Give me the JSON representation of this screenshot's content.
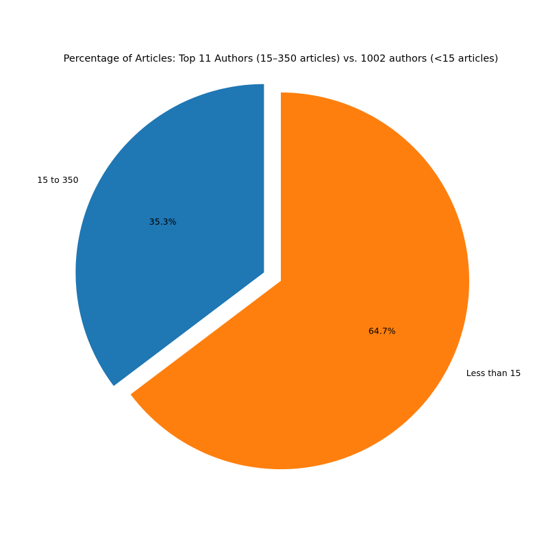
{
  "chart_data": {
    "type": "pie",
    "title": "Percentage of Articles: Top 11 Authors (15–350 articles) vs. 1002 authors (<15 articles)",
    "categories": [
      "15 to 350",
      "Less than 15"
    ],
    "values": [
      35.3,
      64.7
    ],
    "percent_labels": [
      "35.3%",
      "64.7%"
    ],
    "colors": [
      "#1f77b4",
      "#ff7f0e"
    ],
    "exploded": [
      true,
      false
    ],
    "start_angle_deg": 90,
    "direction": "counterclockwise",
    "legend": "none"
  }
}
